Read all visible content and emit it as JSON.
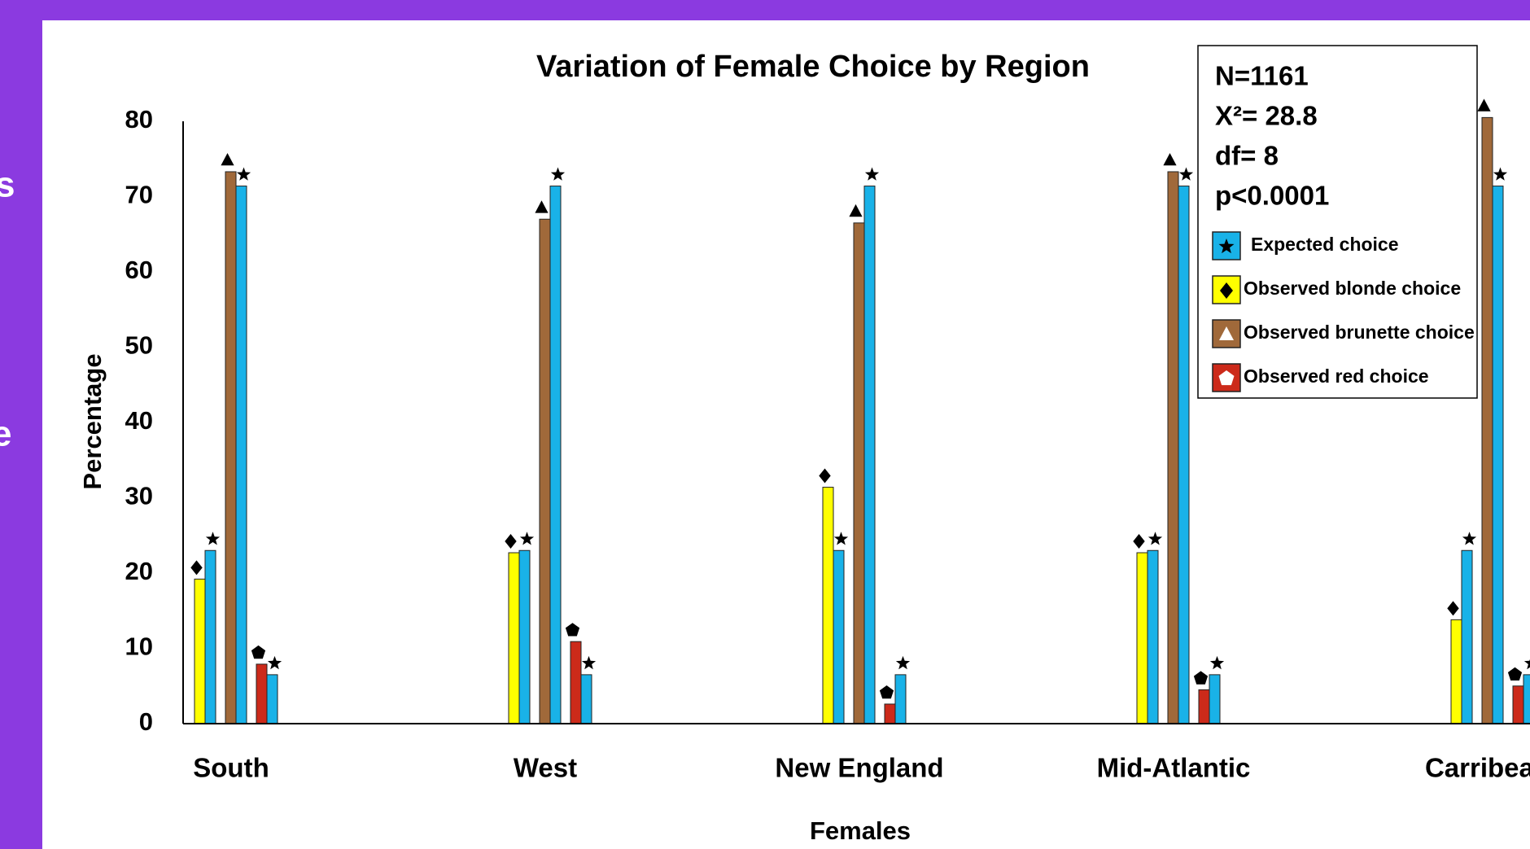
{
  "slide": {
    "fragments": [
      "s",
      "e"
    ]
  },
  "chart_data": {
    "type": "bar",
    "title": "Variation of Female Choice by Region",
    "x_label": "Females",
    "y_label": "Percentage",
    "categories": [
      "South",
      "West",
      "New England",
      "Mid-Atlantic",
      "Carribean"
    ],
    "series": [
      {
        "name": "Expected choice",
        "color": "#19b2e8",
        "marker": "star",
        "values": [
          23,
          23,
          23,
          23,
          23
        ]
      },
      {
        "name": "Observed blonde choice",
        "color": "#ffff00",
        "marker": "diamond",
        "values": [
          19.2,
          22.7,
          31.4,
          22.7,
          13.8
        ]
      },
      {
        "name": "Expected choice",
        "color": "#19b2e8",
        "marker": "star",
        "values": [
          71.4,
          71.4,
          71.4,
          71.4,
          71.4
        ]
      },
      {
        "name": "Observed brunette choice",
        "color": "#a0693a",
        "marker": "triangle",
        "values": [
          73.3,
          67,
          66.5,
          73.3,
          80.5
        ]
      },
      {
        "name": "Expected choice",
        "color": "#19b2e8",
        "marker": "star",
        "values": [
          6.5,
          6.5,
          6.5,
          6.5,
          6.5
        ]
      },
      {
        "name": "Observed red choice",
        "color": "#cc2a1a",
        "marker": "pentagon",
        "values": [
          7.9,
          10.9,
          2.6,
          4.5,
          5
        ]
      }
    ],
    "annotations": [
      "N=1161",
      "X²= 28.8",
      "df= 8",
      "p<0.0001"
    ],
    "ylim": [
      0,
      80
    ],
    "yticks": [
      0,
      10,
      20,
      30,
      40,
      50,
      60,
      70,
      80
    ],
    "grid": false,
    "legend": "upper right"
  }
}
